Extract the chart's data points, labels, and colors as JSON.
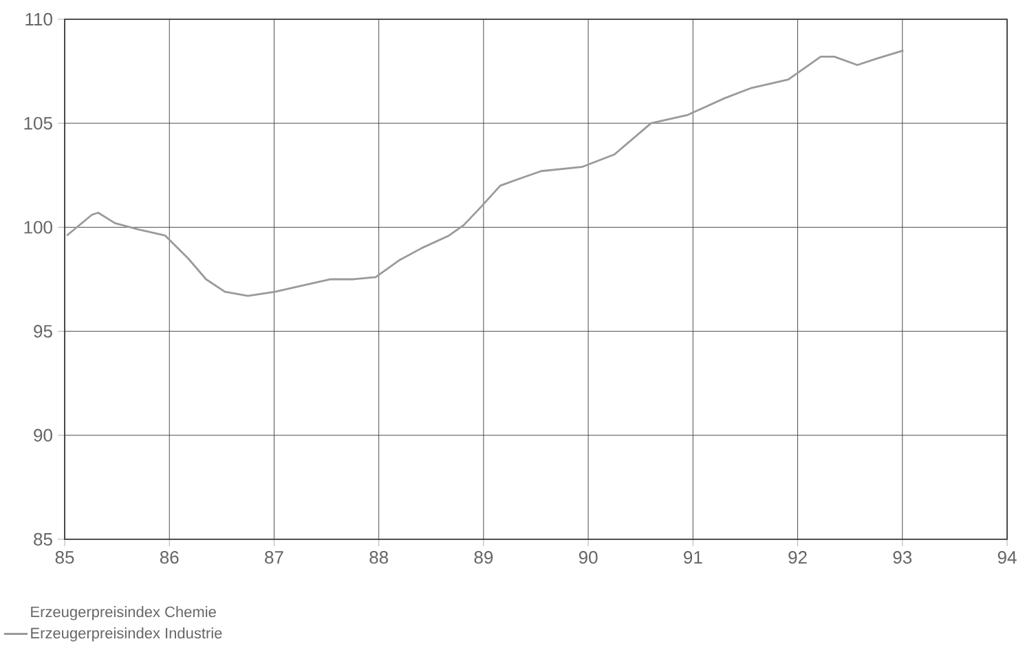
{
  "chart_data": {
    "type": "line",
    "xlim": [
      85,
      94
    ],
    "ylim": [
      85,
      110
    ],
    "xticks": [
      85,
      86,
      87,
      88,
      89,
      90,
      91,
      92,
      93,
      94
    ],
    "yticks": [
      85,
      90,
      95,
      100,
      105,
      110
    ],
    "grid": true,
    "legend": "bottom left",
    "series": [
      {
        "name": "Erzeugerpreisindex Chemie"
      },
      {
        "name": "Erzeugerpreisindex Industrie",
        "color": "#9a9a9a",
        "x": [
          85.02,
          85.26,
          85.32,
          85.48,
          85.7,
          85.96,
          86.18,
          86.35,
          86.53,
          86.75,
          87.01,
          87.27,
          87.54,
          87.76,
          87.97,
          88.19,
          88.41,
          88.67,
          88.81,
          88.98,
          89.16,
          89.38,
          89.55,
          89.94,
          90.25,
          90.6,
          90.95,
          91.3,
          91.56,
          91.91,
          92.05,
          92.22,
          92.35,
          92.57,
          92.75,
          93.01
        ],
        "values": [
          99.6,
          100.6,
          100.7,
          100.2,
          99.9,
          99.6,
          98.5,
          97.5,
          96.9,
          96.7,
          96.9,
          97.2,
          97.5,
          97.5,
          97.6,
          98.4,
          99.0,
          99.6,
          100.1,
          101.0,
          102.0,
          102.4,
          102.7,
          102.9,
          103.5,
          105.0,
          105.4,
          106.2,
          106.7,
          107.1,
          107.6,
          108.2,
          108.2,
          107.8,
          108.1,
          108.5
        ]
      }
    ]
  }
}
